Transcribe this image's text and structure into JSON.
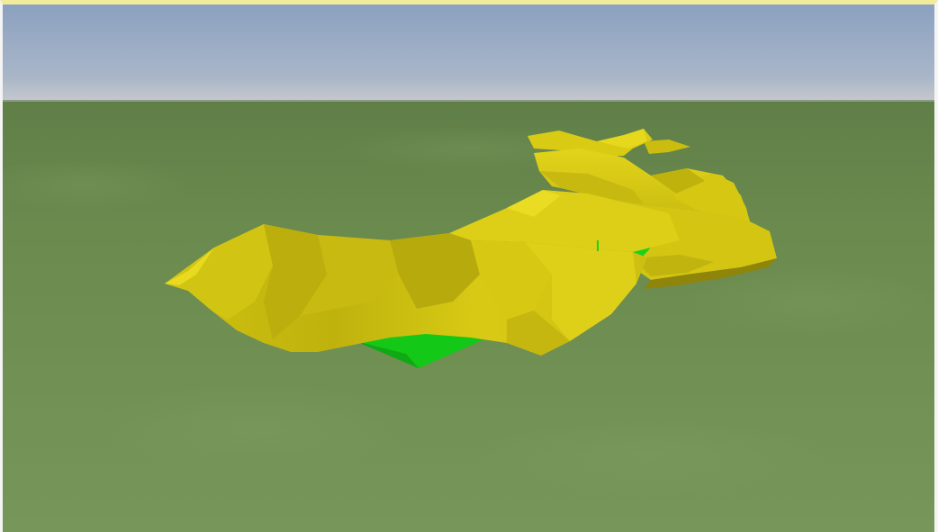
{
  "scene": {
    "sky_top_color": "#8ea4c2",
    "sky_horizon_color": "#c3c8cf",
    "ground_color": "#6e8e50",
    "cloth_color": "#d6c813",
    "cloth_shadow_color": "#a69b0b",
    "underside_color": "#19d61c",
    "objects": [
      {
        "name": "yellow-cloth-mesh",
        "type": "deformed-cloth"
      },
      {
        "name": "green-underside-mesh",
        "type": "collider-surface"
      }
    ]
  }
}
